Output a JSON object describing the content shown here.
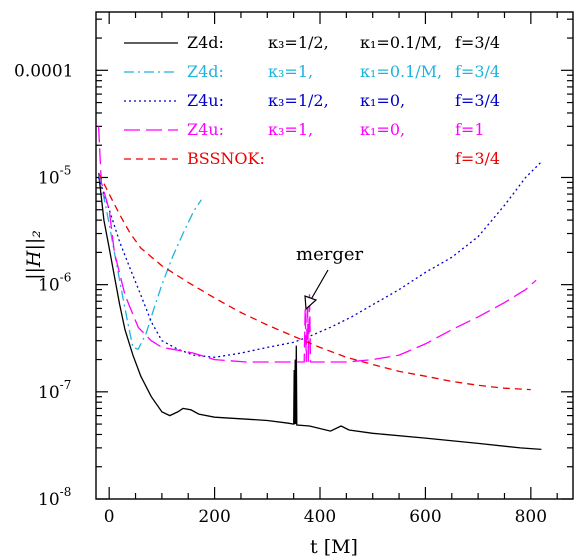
{
  "chart_data": {
    "type": "line",
    "title": "",
    "xlabel": "t [M]",
    "ylabel": "||H||₂",
    "xlim": [
      -25,
      880
    ],
    "ylim": [
      1e-08,
      0.00035
    ],
    "yscale": "log",
    "x_ticks": [
      0,
      200,
      400,
      600,
      800
    ],
    "x_tick_labels": [
      "0",
      "200",
      "400",
      "600",
      "800"
    ],
    "y_ticks": [
      1e-08,
      1e-07,
      1e-06,
      1e-05,
      0.0001
    ],
    "y_tick_labels": [
      {
        "base": "10",
        "exp": "-8"
      },
      {
        "base": "10",
        "exp": "-7"
      },
      {
        "base": "10",
        "exp": "-6"
      },
      {
        "base": "10",
        "exp": "-5"
      },
      {
        "base": "0.0001",
        "exp": ""
      }
    ],
    "grid": false,
    "legend_position": "top-right",
    "annotation": {
      "text": "merger",
      "x": 378,
      "y": 7.5e-07
    },
    "series": [
      {
        "legend": {
          "name": "Z4d:",
          "k3": "κ₃=1/2,",
          "k1": "κ₁=0.1/M,",
          "f": "f=3/4"
        },
        "color": "#000000",
        "dash": "",
        "points": [
          [
            -20,
            1.1e-05
          ],
          [
            -10,
            4e-06
          ],
          [
            0,
            2.2e-06
          ],
          [
            10,
            1.2e-06
          ],
          [
            20,
            6.5e-07
          ],
          [
            30,
            3.8e-07
          ],
          [
            45,
            2.2e-07
          ],
          [
            60,
            1.4e-07
          ],
          [
            80,
            9e-08
          ],
          [
            100,
            6.5e-08
          ],
          [
            115,
            6e-08
          ],
          [
            130,
            6.5e-08
          ],
          [
            140,
            7e-08
          ],
          [
            155,
            6.8e-08
          ],
          [
            170,
            6.2e-08
          ],
          [
            200,
            5.8e-08
          ],
          [
            250,
            5.6e-08
          ],
          [
            300,
            5.4e-08
          ],
          [
            340,
            5.1e-08
          ],
          [
            350,
            5e-08
          ],
          [
            351,
            1.6e-07
          ],
          [
            352,
            5e-08
          ],
          [
            353,
            2e-07
          ],
          [
            354,
            5e-08
          ],
          [
            355,
            2.7e-07
          ],
          [
            356,
            4.9e-08
          ],
          [
            380,
            4.8e-08
          ],
          [
            420,
            4.3e-08
          ],
          [
            440,
            4.8e-08
          ],
          [
            455,
            4.4e-08
          ],
          [
            500,
            4.1e-08
          ],
          [
            600,
            3.7e-08
          ],
          [
            700,
            3.3e-08
          ],
          [
            780,
            3e-08
          ],
          [
            820,
            2.9e-08
          ]
        ]
      },
      {
        "legend": {
          "name": "Z4d:",
          "k3": "κ₃=1,",
          "k1": "κ₁=0.1/M,",
          "f": "f=3/4"
        },
        "color": "#1eb4dc",
        "dash": "10,4,2,4",
        "points": [
          [
            -20,
            1.1e-05
          ],
          [
            -5,
            5e-06
          ],
          [
            10,
            2e-06
          ],
          [
            25,
            8e-07
          ],
          [
            35,
            4.5e-07
          ],
          [
            45,
            2.6e-07
          ],
          [
            55,
            2.5e-07
          ],
          [
            70,
            3.5e-07
          ],
          [
            85,
            6e-07
          ],
          [
            100,
            1e-06
          ],
          [
            120,
            1.8e-06
          ],
          [
            140,
            3e-06
          ],
          [
            160,
            4.8e-06
          ],
          [
            175,
            6.2e-06
          ]
        ]
      },
      {
        "legend": {
          "name": "Z4u:",
          "k3": "κ₃=1/2,",
          "k1": "κ₁=0,",
          "f": "f=3/4"
        },
        "color": "#0000cc",
        "dash": "2,3",
        "points": [
          [
            -20,
            1e-05
          ],
          [
            0,
            5e-06
          ],
          [
            20,
            2.5e-06
          ],
          [
            40,
            1.4e-06
          ],
          [
            60,
            8e-07
          ],
          [
            80,
            4.5e-07
          ],
          [
            100,
            3e-07
          ],
          [
            130,
            2.5e-07
          ],
          [
            160,
            2.2e-07
          ],
          [
            200,
            2.1e-07
          ],
          [
            250,
            2.3e-07
          ],
          [
            300,
            2.6e-07
          ],
          [
            350,
            2.9e-07
          ],
          [
            380,
            3.3e-07
          ],
          [
            420,
            4e-07
          ],
          [
            460,
            5e-07
          ],
          [
            500,
            6.5e-07
          ],
          [
            550,
            9e-07
          ],
          [
            600,
            1.3e-06
          ],
          [
            650,
            1.8e-06
          ],
          [
            700,
            2.8e-06
          ],
          [
            750,
            5.5e-06
          ],
          [
            790,
            1e-05
          ],
          [
            820,
            1.4e-05
          ]
        ]
      },
      {
        "legend": {
          "name": "Z4u:",
          "k3": "κ₃=1,",
          "k1": "κ₁=0,",
          "f": "f=1"
        },
        "color": "#ff00ff",
        "dash": "16,6",
        "points": [
          [
            -20,
            3e-05
          ],
          [
            -15,
            9e-06
          ],
          [
            0,
            5e-06
          ],
          [
            10,
            2e-06
          ],
          [
            30,
            8e-07
          ],
          [
            55,
            4e-07
          ],
          [
            80,
            3e-07
          ],
          [
            100,
            2.6e-07
          ],
          [
            120,
            2.5e-07
          ],
          [
            160,
            2.3e-07
          ],
          [
            200,
            2e-07
          ],
          [
            260,
            1.9e-07
          ],
          [
            320,
            1.9e-07
          ],
          [
            370,
            1.9e-07
          ],
          [
            372,
            6e-07
          ],
          [
            374,
            1.9e-07
          ],
          [
            376,
            7e-07
          ],
          [
            378,
            1.9e-07
          ],
          [
            380,
            8.5e-07
          ],
          [
            382,
            1.9e-07
          ],
          [
            400,
            1.9e-07
          ],
          [
            450,
            1.9e-07
          ],
          [
            500,
            2e-07
          ],
          [
            550,
            2.2e-07
          ],
          [
            600,
            2.8e-07
          ],
          [
            650,
            3.8e-07
          ],
          [
            700,
            5e-07
          ],
          [
            750,
            6.8e-07
          ],
          [
            790,
            9e-07
          ],
          [
            810,
            1.1e-06
          ]
        ]
      },
      {
        "legend": {
          "name": "BSSNOK:",
          "k3": "",
          "k1": "",
          "f": "f=3/4"
        },
        "color": "#ee0000",
        "dash": "7,5",
        "points": [
          [
            -20,
            1.1e-05
          ],
          [
            0,
            7e-06
          ],
          [
            20,
            4.5e-06
          ],
          [
            40,
            3e-06
          ],
          [
            60,
            2.2e-06
          ],
          [
            100,
            1.5e-06
          ],
          [
            150,
            1.05e-06
          ],
          [
            200,
            7.5e-07
          ],
          [
            250,
            5.5e-07
          ],
          [
            300,
            4.2e-07
          ],
          [
            350,
            3.3e-07
          ],
          [
            400,
            2.6e-07
          ],
          [
            450,
            2.1e-07
          ],
          [
            500,
            1.8e-07
          ],
          [
            550,
            1.55e-07
          ],
          [
            600,
            1.4e-07
          ],
          [
            650,
            1.25e-07
          ],
          [
            700,
            1.15e-07
          ],
          [
            750,
            1.08e-07
          ],
          [
            800,
            1.05e-07
          ]
        ]
      }
    ]
  }
}
